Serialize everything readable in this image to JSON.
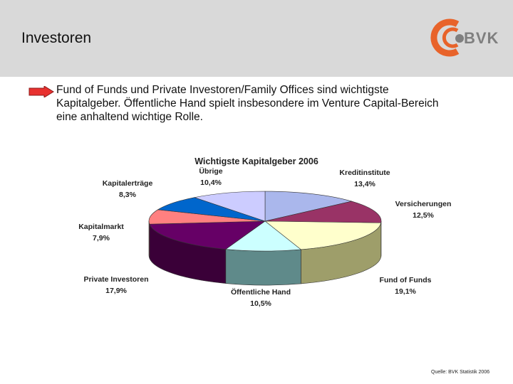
{
  "header": {
    "title": "Investoren",
    "logo_text": "BVK",
    "background": "#d9d9d9"
  },
  "bullet": {
    "text": "Fund of Funds und Private Investoren/Family Offices sind wichtigste Kapitalgeber. Öffentliche Hand spielt insbesondere im Venture Capital-Bereich eine anhaltend wichtige Rolle.",
    "arrow_color": "#e8312f"
  },
  "chart_data": {
    "type": "pie",
    "title": "Wichtigste Kapitalgeber 2006",
    "slices": [
      {
        "label": "Kreditinstitute",
        "value": 13.4,
        "display": "13,4%",
        "color": "#aab7ec",
        "side_color": "#6f79a6"
      },
      {
        "label": "Versicherungen",
        "value": 12.5,
        "display": "12,5%",
        "color": "#993366",
        "side_color": "#5c1f3d"
      },
      {
        "label": "Fund of Funds",
        "value": 19.1,
        "display": "19,1%",
        "color": "#ffffcc",
        "side_color": "#9e9e6a"
      },
      {
        "label": "Öffentliche Hand",
        "value": 10.5,
        "display": "10,5%",
        "color": "#ccffff",
        "side_color": "#5f8a8a"
      },
      {
        "label": "Private Investoren",
        "value": 17.9,
        "display": "17,9%",
        "color": "#660066",
        "side_color": "#3a0038"
      },
      {
        "label": "Kapitalmarkt",
        "value": 7.9,
        "display": "7,9%",
        "color": "#ff8080",
        "side_color": "#a04848"
      },
      {
        "label": "Kapitalerträge",
        "value": 8.3,
        "display": "8,3%",
        "color": "#0066cc",
        "side_color": "#003a78"
      },
      {
        "label": "Übrige",
        "value": 10.4,
        "display": "10,4%",
        "color": "#ccccff",
        "side_color": "#7c7ca8"
      }
    ],
    "legend": "none"
  },
  "source": "Quelle: BVK Statistik 2006"
}
